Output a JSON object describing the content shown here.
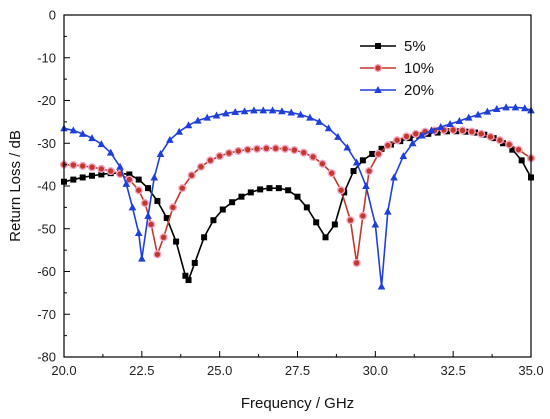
{
  "chart_data": {
    "type": "line",
    "title": "",
    "xlabel": "Frequency / GHz",
    "ylabel": "Return Loss / dB",
    "xlim": [
      20.0,
      35.0
    ],
    "ylim": [
      -80,
      0
    ],
    "x_ticks": [
      "20.0",
      "22.5",
      "25.0",
      "27.5",
      "30.0",
      "32.5",
      "35.0"
    ],
    "y_ticks": [
      "0",
      "-10",
      "-20",
      "-30",
      "-40",
      "-50",
      "-60",
      "-70",
      "-80"
    ],
    "grid": false,
    "legend_position": "top-right",
    "series": [
      {
        "name": "5%",
        "color": "#000000",
        "marker": "square",
        "x": [
          20.0,
          20.3,
          20.6,
          20.9,
          21.2,
          21.5,
          21.8,
          22.1,
          22.4,
          22.7,
          23.0,
          23.3,
          23.6,
          23.9,
          24.0,
          24.2,
          24.5,
          24.8,
          25.1,
          25.4,
          25.7,
          26.0,
          26.3,
          26.6,
          26.9,
          27.2,
          27.5,
          27.8,
          28.1,
          28.4,
          28.7,
          29.0,
          29.3,
          29.6,
          29.9,
          30.2,
          30.5,
          30.8,
          31.1,
          31.4,
          31.7,
          32.0,
          32.3,
          32.6,
          32.9,
          33.2,
          33.5,
          33.8,
          34.1,
          34.4,
          34.7,
          35.0
        ],
        "y": [
          -39,
          -38.5,
          -38,
          -37.6,
          -37.3,
          -37,
          -37,
          -37.3,
          -38.5,
          -40.5,
          -43.5,
          -47.5,
          -53,
          -61,
          -62,
          -58,
          -52,
          -48,
          -45.5,
          -43.8,
          -42.5,
          -41.5,
          -40.8,
          -40.5,
          -40.5,
          -41,
          -42.5,
          -45,
          -48.5,
          -52,
          -49,
          -41.5,
          -36.5,
          -34,
          -32.5,
          -31.3,
          -30.3,
          -29.5,
          -28.8,
          -28.2,
          -27.8,
          -27.5,
          -27.2,
          -27.2,
          -27.3,
          -27.5,
          -28,
          -28.8,
          -30,
          -31.5,
          -34,
          -38
        ]
      },
      {
        "name": "10%",
        "color": "#c0392b",
        "marker": "circle",
        "x": [
          20.0,
          20.3,
          20.6,
          20.9,
          21.2,
          21.5,
          21.8,
          22.1,
          22.4,
          22.6,
          22.8,
          23.0,
          23.2,
          23.5,
          23.8,
          24.1,
          24.4,
          24.7,
          25.0,
          25.3,
          25.6,
          25.9,
          26.2,
          26.5,
          26.8,
          27.1,
          27.4,
          27.7,
          28.0,
          28.3,
          28.6,
          28.9,
          29.2,
          29.4,
          29.6,
          29.8,
          30.1,
          30.4,
          30.7,
          31.0,
          31.3,
          31.6,
          31.9,
          32.2,
          32.5,
          32.8,
          33.1,
          33.4,
          33.7,
          34.0,
          34.3,
          34.6,
          35.0
        ],
        "y": [
          -35,
          -35.1,
          -35.3,
          -35.6,
          -36,
          -36.5,
          -37.2,
          -38.5,
          -41,
          -44,
          -49,
          -56,
          -52,
          -45,
          -40.5,
          -37.5,
          -35.5,
          -34,
          -33,
          -32.3,
          -31.8,
          -31.5,
          -31.3,
          -31.2,
          -31.2,
          -31.3,
          -31.6,
          -32.2,
          -33.2,
          -34.8,
          -37,
          -41,
          -48,
          -58,
          -47,
          -36.5,
          -32.5,
          -30.5,
          -29.3,
          -28.4,
          -27.8,
          -27.3,
          -27,
          -26.9,
          -26.9,
          -27,
          -27.3,
          -27.8,
          -28.5,
          -29.3,
          -30.3,
          -31.5,
          -33.5
        ]
      },
      {
        "name": "20%",
        "color": "#1f3fdb",
        "marker": "triangle",
        "x": [
          20.0,
          20.3,
          20.6,
          20.9,
          21.2,
          21.5,
          21.8,
          22.0,
          22.2,
          22.4,
          22.5,
          22.7,
          22.9,
          23.1,
          23.4,
          23.7,
          24.0,
          24.3,
          24.6,
          24.9,
          25.2,
          25.5,
          25.8,
          26.1,
          26.4,
          26.7,
          27.0,
          27.3,
          27.6,
          27.9,
          28.2,
          28.5,
          28.8,
          29.1,
          29.4,
          29.7,
          30.0,
          30.2,
          30.4,
          30.6,
          30.9,
          31.2,
          31.5,
          31.8,
          32.1,
          32.4,
          32.7,
          33.0,
          33.3,
          33.6,
          33.9,
          34.2,
          34.5,
          34.8,
          35.0
        ],
        "y": [
          -26.5,
          -27,
          -27.8,
          -28.8,
          -30.2,
          -32.2,
          -35.5,
          -39.5,
          -45,
          -51,
          -57,
          -47,
          -38,
          -32.5,
          -29.2,
          -27.3,
          -25.8,
          -24.7,
          -24,
          -23.5,
          -23,
          -22.7,
          -22.5,
          -22.3,
          -22.3,
          -22.3,
          -22.5,
          -22.8,
          -23.3,
          -24,
          -25,
          -26.5,
          -28.5,
          -31,
          -34.5,
          -40,
          -49,
          -63.5,
          -46,
          -38,
          -33,
          -30,
          -28.2,
          -27,
          -26.2,
          -25.5,
          -24.8,
          -24,
          -23.3,
          -22.6,
          -22,
          -21.6,
          -21.6,
          -21.8,
          -22.3
        ]
      }
    ]
  }
}
